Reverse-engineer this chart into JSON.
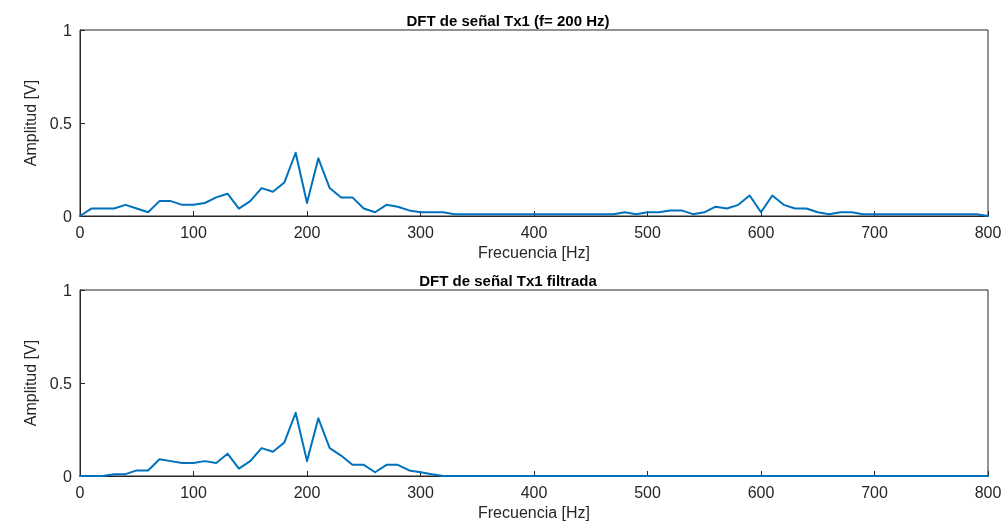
{
  "chart_data": [
    {
      "type": "line",
      "title": "DFT de señal Tx1 (f= 200 Hz)",
      "xlabel": "Frecuencia [Hz]",
      "ylabel": "Amplitud [V]",
      "x": [
        0,
        10,
        20,
        30,
        40,
        50,
        60,
        70,
        80,
        90,
        100,
        110,
        120,
        130,
        140,
        150,
        160,
        170,
        180,
        190,
        200,
        210,
        220,
        230,
        240,
        250,
        260,
        270,
        280,
        290,
        300,
        310,
        320,
        330,
        340,
        350,
        360,
        370,
        380,
        390,
        400,
        410,
        420,
        430,
        440,
        450,
        460,
        470,
        480,
        490,
        500,
        510,
        520,
        530,
        540,
        550,
        560,
        570,
        580,
        590,
        600,
        610,
        620,
        630,
        640,
        650,
        660,
        670,
        680,
        690,
        700,
        710,
        720,
        730,
        740,
        750,
        760,
        770,
        780,
        790,
        800
      ],
      "series": [
        {
          "color": "#0072bd",
          "values": [
            0,
            0.04,
            0.04,
            0.04,
            0.06,
            0.04,
            0.02,
            0.08,
            0.08,
            0.06,
            0.06,
            0.07,
            0.1,
            0.12,
            0.04,
            0.08,
            0.15,
            0.13,
            0.18,
            0.34,
            0.07,
            0.31,
            0.15,
            0.1,
            0.1,
            0.04,
            0.02,
            0.06,
            0.05,
            0.03,
            0.02,
            0.02,
            0.02,
            0.01,
            0.01,
            0.01,
            0.01,
            0.01,
            0.01,
            0.01,
            0.01,
            0.01,
            0.01,
            0.01,
            0.01,
            0.01,
            0.01,
            0.01,
            0.02,
            0.01,
            0.02,
            0.02,
            0.03,
            0.03,
            0.01,
            0.02,
            0.05,
            0.04,
            0.06,
            0.11,
            0.02,
            0.11,
            0.06,
            0.04,
            0.04,
            0.02,
            0.01,
            0.02,
            0.02,
            0.01,
            0.01,
            0.01,
            0.01,
            0.01,
            0.01,
            0.01,
            0.01,
            0.01,
            0.01,
            0.01,
            0
          ]
        }
      ],
      "xlim": [
        0,
        800
      ],
      "xticks": [
        0,
        100,
        200,
        300,
        400,
        500,
        600,
        700,
        800
      ],
      "ylim": [
        0,
        1
      ],
      "yticks": [
        0,
        0.5,
        1
      ],
      "grid": false,
      "marker": "none",
      "line_style": "solid"
    },
    {
      "type": "line",
      "title": "DFT de señal Tx1 filtrada",
      "xlabel": "Frecuencia [Hz]",
      "ylabel": "Amplitud [V]",
      "x": [
        0,
        10,
        20,
        30,
        40,
        50,
        60,
        70,
        80,
        90,
        100,
        110,
        120,
        130,
        140,
        150,
        160,
        170,
        180,
        190,
        200,
        210,
        220,
        230,
        240,
        250,
        260,
        270,
        280,
        290,
        300,
        310,
        320,
        330,
        340,
        350,
        360,
        370,
        380,
        390,
        400,
        410,
        420,
        430,
        440,
        450,
        460,
        470,
        480,
        490,
        500,
        510,
        520,
        530,
        540,
        550,
        560,
        570,
        580,
        590,
        600,
        610,
        620,
        630,
        640,
        650,
        660,
        670,
        680,
        690,
        700,
        710,
        720,
        730,
        740,
        750,
        760,
        770,
        780,
        790,
        800
      ],
      "series": [
        {
          "color": "#0072bd",
          "values": [
            0,
            0,
            0,
            0.01,
            0.01,
            0.03,
            0.03,
            0.09,
            0.08,
            0.07,
            0.07,
            0.08,
            0.07,
            0.12,
            0.04,
            0.08,
            0.15,
            0.13,
            0.18,
            0.34,
            0.08,
            0.31,
            0.15,
            0.11,
            0.06,
            0.06,
            0.02,
            0.06,
            0.06,
            0.03,
            0.02,
            0.01,
            0,
            0,
            0,
            0,
            0,
            0,
            0,
            0,
            0,
            0,
            0,
            0,
            0,
            0,
            0,
            0,
            0,
            0,
            0,
            0,
            0,
            0,
            0,
            0,
            0,
            0,
            0,
            0,
            0,
            0,
            0,
            0,
            0,
            0,
            0,
            0,
            0,
            0,
            0,
            0,
            0,
            0,
            0,
            0,
            0,
            0,
            0,
            0,
            0
          ]
        }
      ],
      "xlim": [
        0,
        800
      ],
      "xticks": [
        0,
        100,
        200,
        300,
        400,
        500,
        600,
        700,
        800
      ],
      "ylim": [
        0,
        1
      ],
      "yticks": [
        0,
        0.5,
        1
      ],
      "grid": false,
      "marker": "none",
      "line_style": "solid"
    }
  ]
}
